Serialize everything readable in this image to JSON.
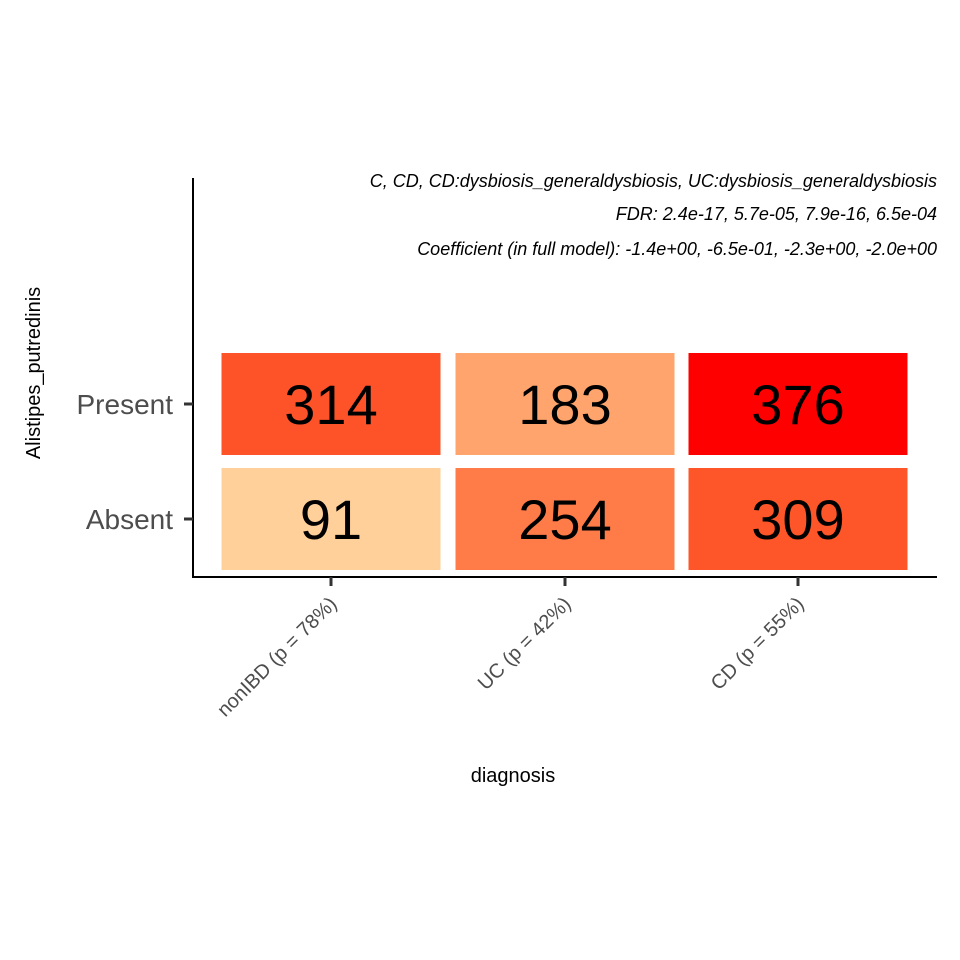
{
  "chart_data": {
    "type": "heatmap",
    "subtitle_lines": [
      "C, CD, CD:dysbiosis_generaldysbiosis, UC:dysbiosis_generaldysbiosis",
      "FDR: 2.4e-17, 5.7e-05, 7.9e-16, 6.5e-04",
      "Coefficient (in full model): -1.4e+00, -6.5e-01, -2.3e+00, -2.0e+00"
    ],
    "xlabel": "diagnosis",
    "ylabel": "Alistipes_putredinis",
    "x_categories": [
      "nonIBD (p = 78%)",
      "UC (p = 42%)",
      "CD (p = 55%)"
    ],
    "y_categories": [
      "Present",
      "Absent"
    ],
    "values": [
      [
        314,
        183,
        376
      ],
      [
        91,
        254,
        309
      ]
    ],
    "colors": [
      [
        "#fe5329",
        "#ffa46c",
        "#ff0000"
      ],
      [
        "#ffd09a",
        "#ff7c49",
        "#fe5529"
      ]
    ]
  }
}
